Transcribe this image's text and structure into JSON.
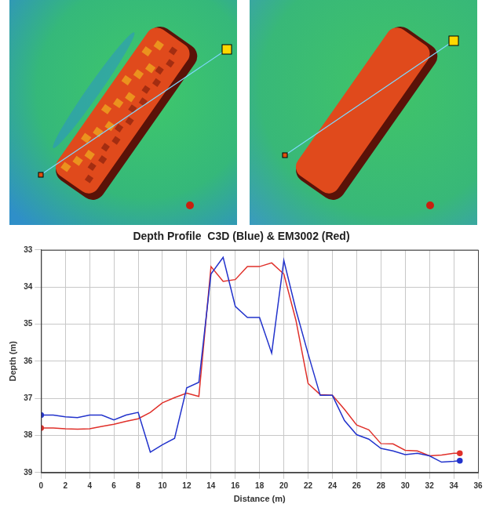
{
  "chart_data": {
    "type": "line",
    "title": "Depth Profile  C3D (Blue) & EM3002 (Red)",
    "x_label": "Distance (m)",
    "y_label": "Depth (m)",
    "x": [
      0,
      1,
      2,
      3,
      4,
      5,
      6,
      7,
      8,
      9,
      10,
      11,
      12,
      13,
      14,
      15,
      16,
      17,
      18,
      19,
      20,
      21,
      22,
      23,
      24,
      25,
      26,
      27,
      28,
      29,
      30,
      31,
      32,
      33,
      34,
      34.5
    ],
    "series": [
      {
        "color": "#2233cc",
        "values": [
          37.45,
          37.45,
          37.5,
          37.52,
          37.45,
          37.45,
          37.58,
          37.45,
          37.38,
          38.45,
          38.25,
          38.08,
          36.72,
          36.57,
          33.65,
          33.2,
          34.52,
          34.82,
          34.82,
          35.78,
          33.28,
          34.62,
          35.8,
          36.92,
          36.92,
          37.6,
          37.98,
          38.1,
          38.35,
          38.42,
          38.52,
          38.48,
          38.55,
          38.72,
          38.7,
          38.68
        ]
      },
      {
        "color": "#e0302a",
        "values": [
          37.8,
          37.8,
          37.82,
          37.83,
          37.82,
          37.76,
          37.7,
          37.62,
          37.55,
          37.38,
          37.12,
          36.98,
          36.86,
          36.95,
          33.45,
          33.85,
          33.8,
          33.45,
          33.45,
          33.35,
          33.65,
          34.9,
          36.6,
          36.9,
          36.92,
          37.3,
          37.72,
          37.85,
          38.22,
          38.23,
          38.4,
          38.42,
          38.55,
          38.53,
          38.48,
          38.48
        ]
      }
    ],
    "xlim": [
      0,
      36
    ],
    "xticks": [
      0,
      2,
      4,
      6,
      8,
      10,
      12,
      14,
      16,
      18,
      20,
      22,
      24,
      26,
      28,
      30,
      32,
      34,
      36
    ],
    "ylim": [
      39,
      33
    ],
    "yticks": [
      33,
      34,
      35,
      36,
      37,
      38,
      39
    ],
    "grid": true
  }
}
